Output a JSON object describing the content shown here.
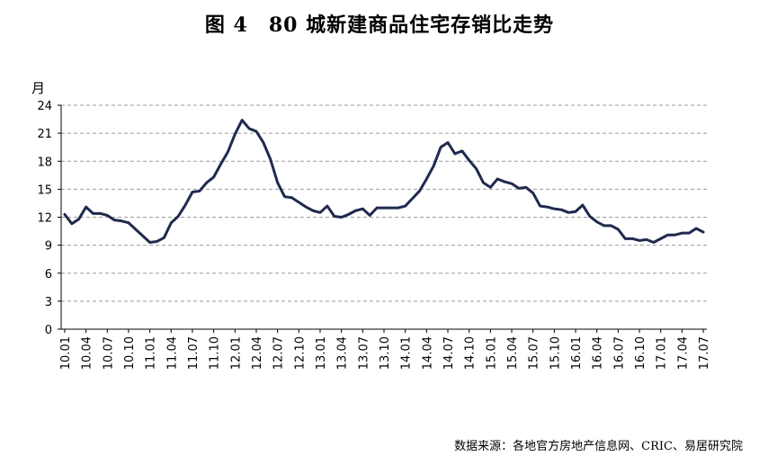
{
  "title": "图 4　80 城新建商品住宅存销比走势",
  "source": "数据来源：各地官方房地产信息网、CRIC、易居研究院",
  "chart_data": {
    "type": "line",
    "title": "图 4　80 城新建商品住宅存销比走势",
    "ylabel": "月",
    "xlabel": "",
    "ylim": [
      0,
      24
    ],
    "yticks": [
      0,
      3,
      6,
      9,
      12,
      15,
      18,
      21,
      24
    ],
    "grid": true,
    "line_color": "#1f2a4d",
    "x_tick_labels": [
      "10.01",
      "10.04",
      "10.07",
      "10.10",
      "11.01",
      "11.04",
      "11.07",
      "11.10",
      "12.01",
      "12.04",
      "12.07",
      "12.10",
      "13.01",
      "13.04",
      "13.07",
      "13.10",
      "14.01",
      "14.04",
      "14.07",
      "14.10",
      "15.01",
      "15.04",
      "15.07",
      "15.10",
      "16.01",
      "16.04",
      "16.07",
      "16.10",
      "17.01",
      "17.04",
      "17.07"
    ],
    "x": [
      "10.01",
      "10.02",
      "10.03",
      "10.04",
      "10.05",
      "10.06",
      "10.07",
      "10.08",
      "10.09",
      "10.10",
      "10.11",
      "10.12",
      "11.01",
      "11.02",
      "11.03",
      "11.04",
      "11.05",
      "11.06",
      "11.07",
      "11.08",
      "11.09",
      "11.10",
      "11.11",
      "11.12",
      "12.01",
      "12.02",
      "12.03",
      "12.04",
      "12.05",
      "12.06",
      "12.07",
      "12.08",
      "12.09",
      "12.10",
      "12.11",
      "12.12",
      "13.01",
      "13.02",
      "13.03",
      "13.04",
      "13.05",
      "13.06",
      "13.07",
      "13.08",
      "13.09",
      "13.10",
      "13.11",
      "13.12",
      "14.01",
      "14.02",
      "14.03",
      "14.04",
      "14.05",
      "14.06",
      "14.07",
      "14.08",
      "14.09",
      "14.10",
      "14.11",
      "14.12",
      "15.01",
      "15.02",
      "15.03",
      "15.04",
      "15.05",
      "15.06",
      "15.07",
      "15.08",
      "15.09",
      "15.10",
      "15.11",
      "15.12",
      "16.01",
      "16.02",
      "16.03",
      "16.04",
      "16.05",
      "16.06",
      "16.07",
      "16.08",
      "16.09",
      "16.10",
      "16.11",
      "16.12",
      "17.01",
      "17.02",
      "17.03",
      "17.04",
      "17.05",
      "17.06",
      "17.07"
    ],
    "series": [
      {
        "values": [
          12.3,
          11.3,
          11.8,
          13.1,
          12.4,
          12.4,
          12.2,
          11.7,
          11.6,
          11.4,
          10.7,
          10.0,
          9.3,
          9.4,
          9.8,
          11.4,
          12.1,
          13.3,
          14.7,
          14.8,
          15.7,
          16.3,
          17.7,
          19.0,
          20.9,
          22.4,
          21.5,
          21.2,
          20.0,
          18.2,
          15.7,
          14.2,
          14.1,
          13.6,
          13.1,
          12.7,
          12.5,
          13.2,
          12.1,
          12.0,
          12.3,
          12.7,
          12.9,
          12.2,
          13.0,
          13.0,
          13.0,
          13.0,
          13.2,
          14.0,
          14.8,
          16.1,
          17.5,
          19.5,
          20.0,
          18.8,
          19.1,
          18.1,
          17.2,
          15.7,
          15.2,
          16.1,
          15.8,
          15.6,
          15.1,
          15.2,
          14.6,
          13.2,
          13.1,
          12.9,
          12.8,
          12.5,
          12.6,
          13.3,
          12.1,
          11.5,
          11.1,
          11.1,
          10.7,
          9.7,
          9.7,
          9.5,
          9.6,
          9.3,
          9.7,
          10.1,
          10.1,
          10.3,
          10.3,
          10.8,
          10.4
        ]
      }
    ]
  }
}
